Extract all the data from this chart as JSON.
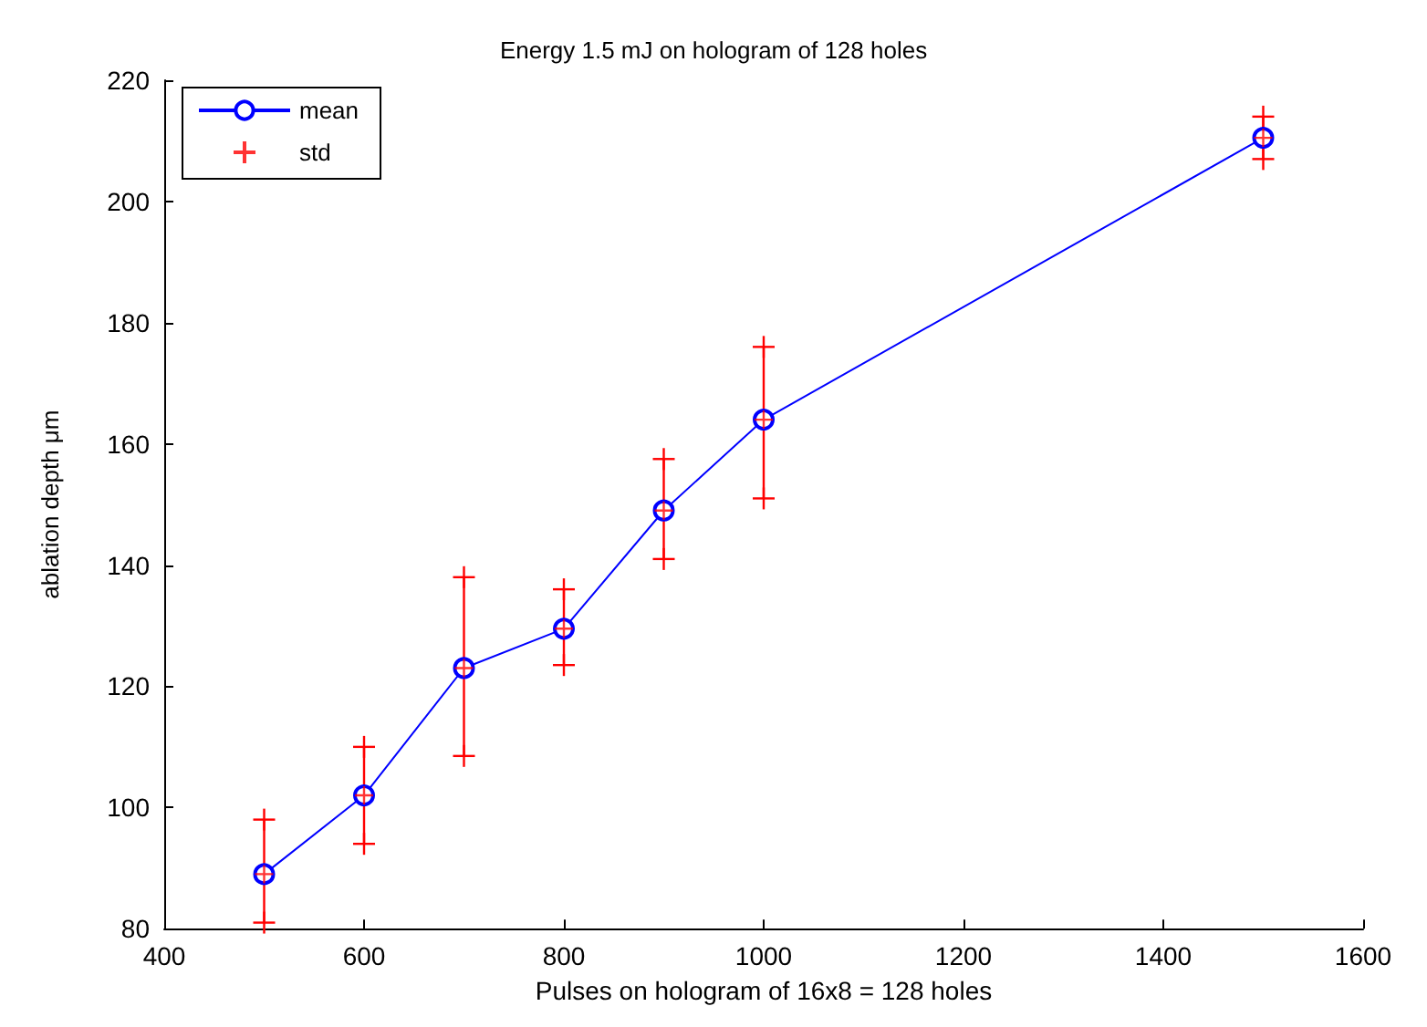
{
  "chart_data": {
    "type": "line",
    "title": "Energy 1.5 mJ on hologram of 128 holes",
    "xlabel": "Pulses on hologram of 16x8 = 128 holes",
    "ylabel": "ablation depth μm",
    "x": [
      500,
      600,
      700,
      800,
      900,
      1000,
      1500
    ],
    "series": [
      {
        "name": "mean",
        "color": "#0000ff",
        "marker": "circle",
        "values": [
          89,
          102,
          123,
          129.5,
          149,
          164,
          210.5
        ]
      },
      {
        "name": "std",
        "color": "#ff0000",
        "type": "scatter",
        "marker": "cross",
        "values": [
          89,
          102,
          123,
          129.5,
          149,
          164,
          210.5
        ],
        "errors": [
          [
            81,
            98
          ],
          [
            94,
            110
          ],
          [
            108.5,
            138
          ],
          [
            123.5,
            136
          ],
          [
            141,
            157.5
          ],
          [
            151,
            176
          ],
          [
            207,
            214
          ]
        ]
      }
    ],
    "xlim": [
      400,
      1600
    ],
    "xticks": [
      400,
      600,
      800,
      1000,
      1200,
      1400,
      1600
    ],
    "ylim": [
      80,
      220
    ],
    "yticks": [
      80,
      100,
      120,
      140,
      160,
      180,
      200,
      220
    ],
    "grid": false,
    "legend": "top left"
  }
}
